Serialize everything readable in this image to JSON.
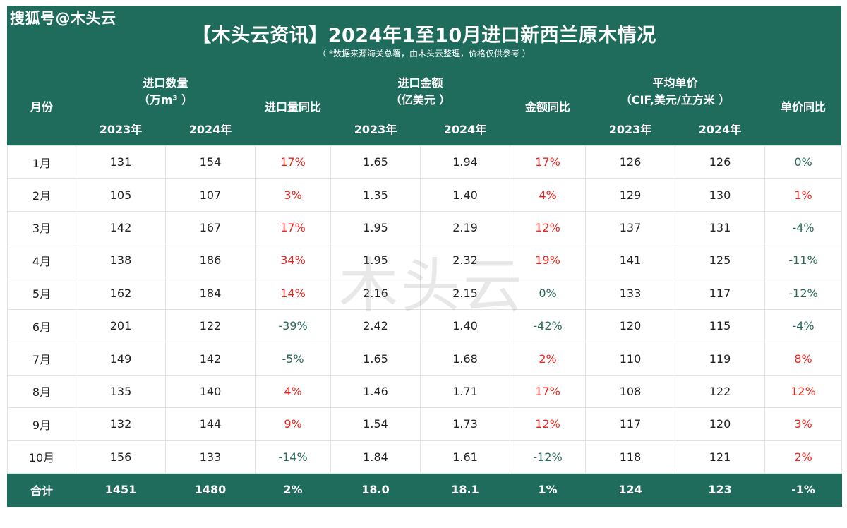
{
  "watermark": "搜狐号@木头云",
  "stamp": "木头云",
  "title": "【木头云资讯】2024年1至10月进口新西兰原木情况",
  "subtitle": "（ *数据来源海关总署，由木头云整理，价格仅供参考 ）",
  "headers": {
    "month": "月份",
    "qty": "进口数量",
    "qty_unit": "（万m³ ）",
    "qty_yoy": "进口量同比",
    "amt": "进口金额",
    "amt_unit": "（亿美元 ）",
    "amt_yoy": "金额同比",
    "price": "平均单价",
    "price_unit": "（CIF,美元/立方米 ）",
    "price_yoy": "单价同比",
    "y2023": "2023年",
    "y2024": "2024年"
  },
  "rows": [
    [
      "1月",
      "131",
      "154",
      "17%",
      "1.65",
      "1.94",
      "17%",
      "126",
      "126",
      "0%"
    ],
    [
      "2月",
      "105",
      "107",
      "3%",
      "1.35",
      "1.40",
      "4%",
      "129",
      "130",
      "1%"
    ],
    [
      "3月",
      "142",
      "167",
      "17%",
      "1.95",
      "2.19",
      "12%",
      "137",
      "131",
      "-4%"
    ],
    [
      "4月",
      "138",
      "186",
      "34%",
      "1.95",
      "2.32",
      "19%",
      "141",
      "125",
      "-11%"
    ],
    [
      "5月",
      "162",
      "184",
      "14%",
      "2.16",
      "2.15",
      "0%",
      "133",
      "117",
      "-12%"
    ],
    [
      "6月",
      "201",
      "122",
      "-39%",
      "2.42",
      "1.40",
      "-42%",
      "120",
      "115",
      "-4%"
    ],
    [
      "7月",
      "149",
      "142",
      "-5%",
      "1.65",
      "1.68",
      "2%",
      "110",
      "119",
      "8%"
    ],
    [
      "8月",
      "135",
      "140",
      "4%",
      "1.46",
      "1.71",
      "17%",
      "108",
      "122",
      "12%"
    ],
    [
      "9月",
      "132",
      "144",
      "9%",
      "1.54",
      "1.73",
      "12%",
      "117",
      "120",
      "3%"
    ],
    [
      "10月",
      "156",
      "133",
      "-14%",
      "1.84",
      "1.61",
      "-12%",
      "118",
      "121",
      "2%"
    ]
  ],
  "total": [
    "合计",
    "1451",
    "1480",
    "2%",
    "18.0",
    "18.1",
    "1%",
    "124",
    "123",
    "-1%"
  ],
  "colors": {
    "header_bg": "#1f6b5c",
    "positive": "#e8261f",
    "negative": "#2a6a5c"
  }
}
